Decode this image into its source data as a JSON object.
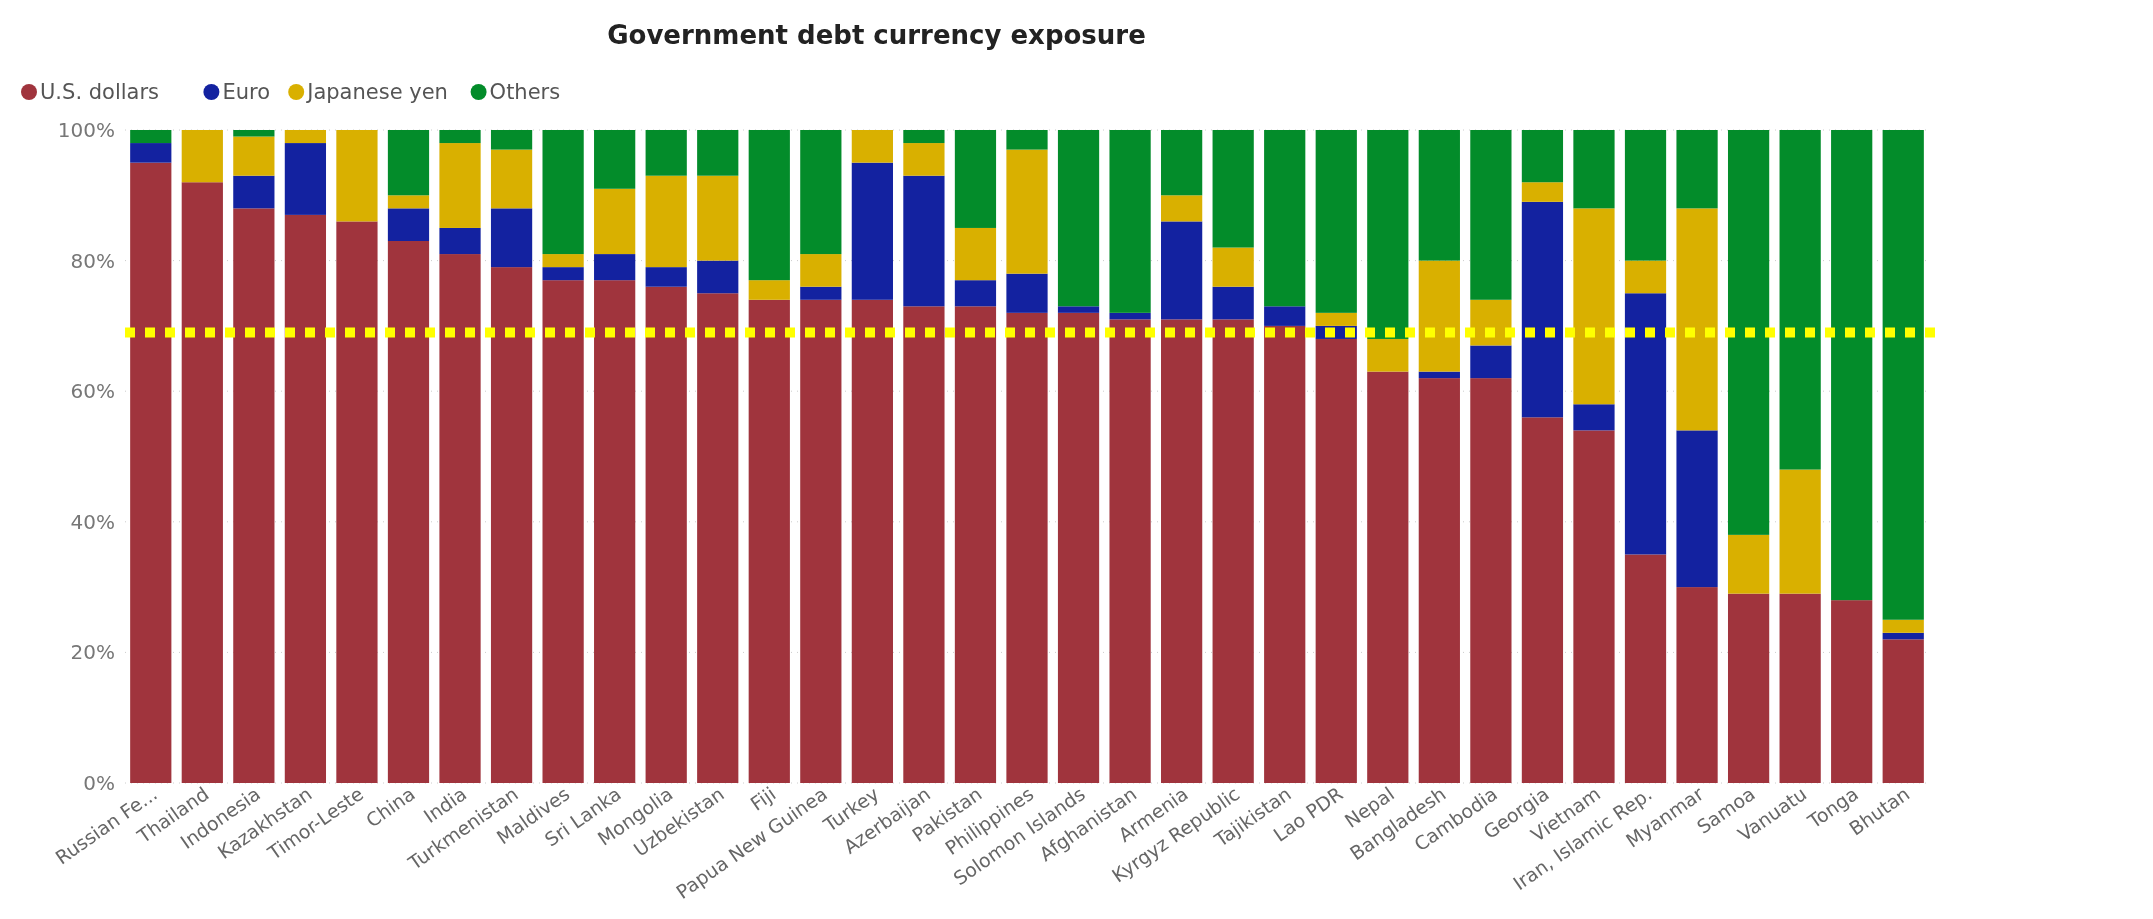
{
  "chart_data": {
    "type": "bar",
    "title": "Government debt currency exposure",
    "stacked": true,
    "categories": [
      "Russian Fe...",
      "Thailand",
      "Indonesia",
      "Kazakhstan",
      "Timor-Leste",
      "China",
      "India",
      "Turkmenistan",
      "Maldives",
      "Sri Lanka",
      "Mongolia",
      "Uzbekistan",
      "Fiji",
      "Papua New Guinea",
      "Turkey",
      "Azerbaijan",
      "Pakistan",
      "Philippines",
      "Solomon Islands",
      "Afghanistan",
      "Armenia",
      "Kyrgyz Republic",
      "Tajikistan",
      "Lao PDR",
      "Nepal",
      "Bangladesh",
      "Cambodia",
      "Georgia",
      "Vietnam",
      "Iran, Islamic Rep.",
      "Myanmar",
      "Samoa",
      "Vanuatu",
      "Tonga",
      "Bhutan"
    ],
    "series": [
      {
        "name": "U.S. dollars",
        "color": "#a0343d",
        "values": [
          95,
          92,
          88,
          87,
          86,
          83,
          81,
          79,
          77,
          77,
          76,
          75,
          74,
          74,
          74,
          73,
          73,
          72,
          72,
          71,
          71,
          71,
          70,
          68,
          63,
          62,
          62,
          56,
          54,
          35,
          30,
          29,
          29,
          28,
          22
        ]
      },
      {
        "name": "Euro",
        "color": "#1322a0",
        "values": [
          3,
          0,
          5,
          11,
          0,
          5,
          4,
          9,
          2,
          4,
          3,
          5,
          0,
          2,
          21,
          20,
          4,
          6,
          1,
          1,
          15,
          5,
          3,
          2,
          0,
          1,
          5,
          33,
          4,
          40,
          24,
          0,
          0,
          0,
          1
        ]
      },
      {
        "name": "Japanese yen",
        "color": "#d9b000",
        "values": [
          0,
          8,
          6,
          2,
          14,
          2,
          13,
          9,
          2,
          10,
          14,
          13,
          3,
          5,
          5,
          5,
          8,
          19,
          0,
          0,
          4,
          6,
          0,
          2,
          5,
          17,
          7,
          3,
          30,
          5,
          34,
          9,
          19,
          0,
          2
        ]
      },
      {
        "name": "Others",
        "color": "#038c2a",
        "values": [
          2,
          0,
          1,
          0,
          0,
          10,
          2,
          3,
          19,
          9,
          7,
          7,
          23,
          19,
          0,
          2,
          15,
          3,
          27,
          28,
          10,
          18,
          27,
          28,
          32,
          20,
          26,
          8,
          12,
          20,
          12,
          62,
          52,
          72,
          75
        ]
      }
    ],
    "ylim": [
      0,
      100
    ],
    "yticks": [
      {
        "value": 0,
        "label": "0%"
      },
      {
        "value": 20,
        "label": "20%"
      },
      {
        "value": 40,
        "label": "40%"
      },
      {
        "value": 60,
        "label": "60%"
      },
      {
        "value": 80,
        "label": "80%"
      },
      {
        "value": 100,
        "label": "100%"
      }
    ],
    "grid": "y",
    "legend": "top left",
    "ref_lines": [
      {
        "axis": "y",
        "value": 69,
        "color": "#ffff00",
        "line_style": "dotted"
      }
    ]
  }
}
